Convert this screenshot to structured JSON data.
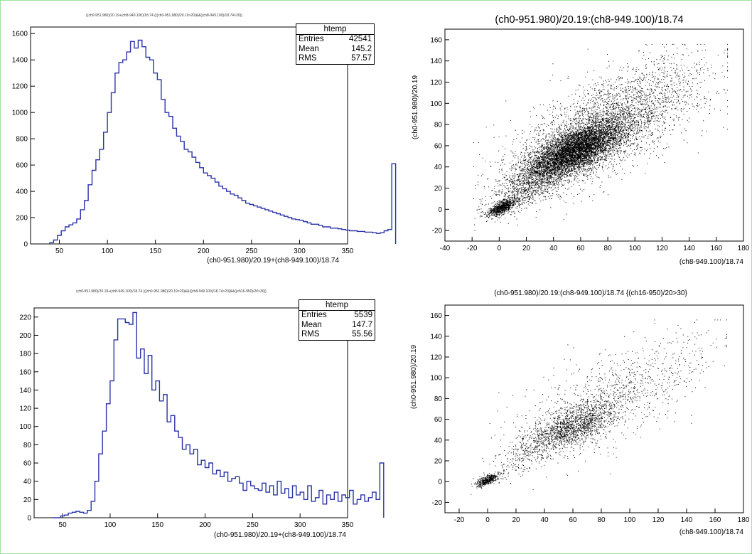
{
  "chart_data": [
    {
      "type": "histogram",
      "title": "((ch0-951.980)/20.19+(ch8-949.100)/18.74 {((ch0-951.980)/20.19>20)&&((ch8-949.100)/18.74>20)}",
      "xlabel": "(ch0-951.980)/20.19+(ch8-949.100)/18.74",
      "ylabel": "",
      "xlim": [
        20,
        350
      ],
      "ylim": [
        0,
        1650
      ],
      "xticks": [
        50,
        100,
        150,
        200,
        250,
        300,
        350
      ],
      "yticks": [
        0,
        200,
        400,
        600,
        800,
        1000,
        1200,
        1400,
        1600
      ],
      "bin_start": 40,
      "bin_width": 4,
      "values": [
        10,
        30,
        65,
        100,
        130,
        145,
        160,
        190,
        260,
        330,
        450,
        560,
        640,
        720,
        850,
        1000,
        1150,
        1300,
        1380,
        1400,
        1460,
        1540,
        1490,
        1550,
        1500,
        1420,
        1400,
        1300,
        1250,
        1100,
        1000,
        970,
        880,
        820,
        780,
        720,
        700,
        660,
        620,
        580,
        540,
        520,
        500,
        470,
        440,
        420,
        400,
        380,
        370,
        350,
        330,
        310,
        300,
        290,
        280,
        270,
        260,
        250,
        240,
        230,
        220,
        210,
        200,
        190,
        185,
        180,
        170,
        160,
        150,
        150,
        140,
        130,
        130,
        120,
        120,
        115,
        110,
        105,
        100,
        100,
        95,
        95,
        90,
        90,
        85,
        80,
        85,
        100,
        110,
        610
      ],
      "stats": {
        "name": "htemp",
        "rows": [
          {
            "label": "Entries",
            "value": "42541"
          },
          {
            "label": "Mean",
            "value": "145.2"
          },
          {
            "label": "RMS",
            "value": "57.57"
          }
        ]
      }
    },
    {
      "type": "scatter",
      "title": "(ch0-951.980)/20.19:(ch8-949.100)/18.74",
      "xlabel": "(ch8-949.100)/18.74",
      "ylabel": "(ch0-951.980)/20.19",
      "xlim": [
        -40,
        180
      ],
      "ylim": [
        -30,
        170
      ],
      "xticks": [
        -40,
        -20,
        0,
        20,
        40,
        60,
        80,
        100,
        120,
        140,
        160,
        180
      ],
      "yticks": [
        -20,
        0,
        20,
        40,
        60,
        80,
        100,
        120,
        140,
        160
      ],
      "clusters": [
        {
          "cx": 55,
          "cy": 55,
          "sx": 18,
          "sy": 14,
          "n": 6000
        },
        {
          "cx": 80,
          "cy": 80,
          "sx": 35,
          "sy": 30,
          "n": 3500
        },
        {
          "cx": 2,
          "cy": 2,
          "sx": 5,
          "sy": 4,
          "n": 800
        },
        {
          "cx": 20,
          "cy": 20,
          "sx": 15,
          "sy": 13,
          "n": 700
        }
      ],
      "saturation": {
        "x": 168,
        "y": 156
      }
    },
    {
      "type": "histogram",
      "title": "(ch0-951.980)/20.19+(ch8-949.100)/18.74 {((ch0-951.980)/20.19>20)&&((ch8-949.100)/18.74>20)&&((ch16-950)/20>30)}",
      "xlabel": "(ch0-951.980)/20.19+(ch8-949.100)/18.74",
      "ylabel": "",
      "xlim": [
        20,
        350
      ],
      "ylim": [
        0,
        230
      ],
      "xticks": [
        50,
        100,
        150,
        200,
        250,
        300,
        350
      ],
      "yticks": [
        0,
        20,
        40,
        60,
        80,
        100,
        120,
        140,
        160,
        180,
        200,
        220
      ],
      "bin_start": 40,
      "bin_width": 4,
      "values": [
        0,
        0,
        2,
        3,
        5,
        6,
        7,
        6,
        5,
        8,
        18,
        40,
        70,
        95,
        125,
        150,
        195,
        218,
        218,
        214,
        212,
        225,
        175,
        185,
        158,
        178,
        140,
        150,
        128,
        135,
        105,
        112,
        95,
        88,
        75,
        80,
        70,
        75,
        58,
        63,
        55,
        60,
        48,
        52,
        45,
        50,
        40,
        43,
        45,
        38,
        30,
        40,
        35,
        32,
        30,
        38,
        28,
        35,
        25,
        40,
        27,
        32,
        22,
        35,
        25,
        28,
        20,
        35,
        18,
        22,
        30,
        15,
        25,
        20,
        28,
        18,
        25,
        22,
        30,
        15,
        20,
        25,
        18,
        22,
        28,
        20,
        60
      ],
      "stats": {
        "name": "htemp",
        "rows": [
          {
            "label": "Entries",
            "value": "5539"
          },
          {
            "label": "Mean",
            "value": "147.7"
          },
          {
            "label": "RMS",
            "value": "55.56"
          }
        ]
      }
    },
    {
      "type": "scatter",
      "title": "(ch0-951.980)/20.19:(ch8-949.100)/18.74 {(ch16-950)/20>30}",
      "xlabel": "(ch8-949.100)/18.74",
      "ylabel": "(ch0-951.980)/20.19",
      "xlim": [
        -30,
        180
      ],
      "ylim": [
        -30,
        170
      ],
      "xticks": [
        -20,
        0,
        20,
        40,
        60,
        80,
        100,
        120,
        140,
        160,
        180
      ],
      "yticks": [
        -20,
        0,
        20,
        40,
        60,
        80,
        100,
        120,
        140,
        160
      ],
      "clusters": [
        {
          "cx": 58,
          "cy": 52,
          "sx": 17,
          "sy": 13,
          "n": 1500
        },
        {
          "cx": 85,
          "cy": 80,
          "sx": 35,
          "sy": 30,
          "n": 1100
        },
        {
          "cx": 0,
          "cy": 2,
          "sx": 4,
          "sy": 3,
          "n": 450
        },
        {
          "cx": 22,
          "cy": 22,
          "sx": 14,
          "sy": 12,
          "n": 150
        }
      ],
      "saturation": {
        "x": 168,
        "y": 156
      }
    }
  ]
}
